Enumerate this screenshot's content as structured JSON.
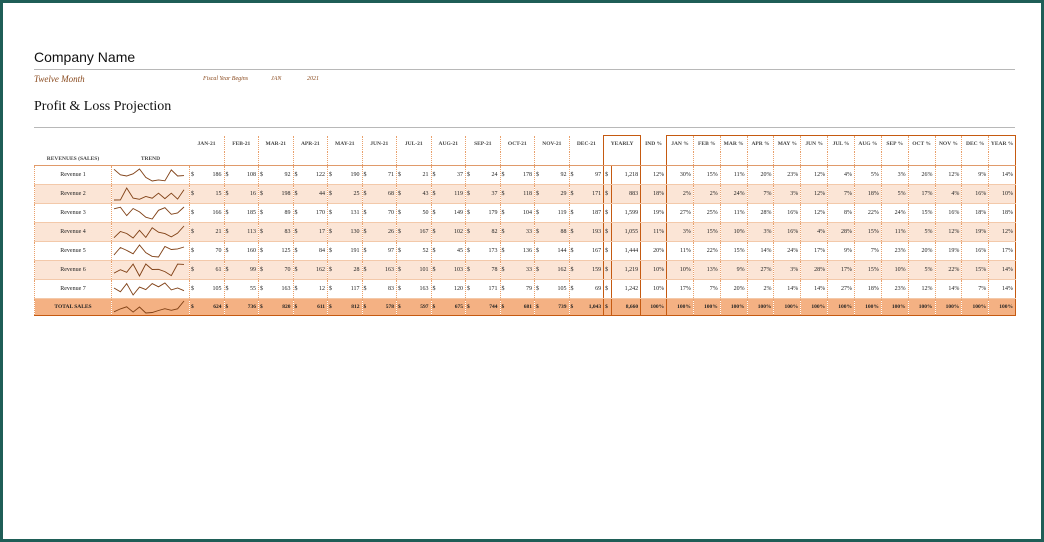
{
  "company_name": "Company Name",
  "subtitle": "Twelve Month",
  "fiscal": {
    "label": "Fiscal Year Begins",
    "month": "JAN",
    "year": "2021"
  },
  "report_title": "Profit & Loss Projection",
  "table": {
    "revenues_header": "REVENUES (SALES)",
    "trend_header": "TREND",
    "months": [
      "JAN-21",
      "FEB-21",
      "MAR-21",
      "APR-21",
      "MAY-21",
      "JUN-21",
      "JUL-21",
      "AUG-21",
      "SEP-21",
      "OCT-21",
      "NOV-21",
      "DEC-21"
    ],
    "yearly_header": "YEARLY",
    "ind_header": "IND %",
    "pct_headers": [
      "JAN %",
      "FEB %",
      "MAR %",
      "APR %",
      "MAY %",
      "JUN %",
      "JUL %",
      "AUG %",
      "SEP %",
      "OCT %",
      "NOV %",
      "DEC %",
      "YEAR %"
    ],
    "currency": "$",
    "rows": [
      {
        "label": "Revenue 1",
        "values": [
          "186",
          "108",
          "92",
          "122",
          "190",
          "71",
          "21",
          "37",
          "24",
          "178",
          "92",
          "97"
        ],
        "yearly": "1,218",
        "ind": "12%",
        "pcts": [
          "30%",
          "15%",
          "11%",
          "20%",
          "23%",
          "12%",
          "4%",
          "5%",
          "3%",
          "26%",
          "12%",
          "9%",
          "14%"
        ]
      },
      {
        "label": "Revenue 2",
        "values": [
          "15",
          "16",
          "198",
          "44",
          "25",
          "68",
          "43",
          "119",
          "37",
          "118",
          "29",
          "171"
        ],
        "yearly": "883",
        "ind": "18%",
        "pcts": [
          "2%",
          "2%",
          "24%",
          "7%",
          "3%",
          "12%",
          "7%",
          "18%",
          "5%",
          "17%",
          "4%",
          "16%",
          "10%"
        ]
      },
      {
        "label": "Revenue 3",
        "values": [
          "166",
          "185",
          "89",
          "170",
          "131",
          "70",
          "50",
          "149",
          "179",
          "104",
          "119",
          "187"
        ],
        "yearly": "1,599",
        "ind": "19%",
        "pcts": [
          "27%",
          "25%",
          "11%",
          "28%",
          "16%",
          "12%",
          "8%",
          "22%",
          "24%",
          "15%",
          "16%",
          "18%",
          "18%"
        ]
      },
      {
        "label": "Revenue 4",
        "values": [
          "21",
          "113",
          "83",
          "17",
          "130",
          "26",
          "167",
          "102",
          "82",
          "33",
          "88",
          "193"
        ],
        "yearly": "1,055",
        "ind": "11%",
        "pcts": [
          "3%",
          "15%",
          "10%",
          "3%",
          "16%",
          "4%",
          "28%",
          "15%",
          "11%",
          "5%",
          "12%",
          "19%",
          "12%"
        ]
      },
      {
        "label": "Revenue 5",
        "values": [
          "70",
          "160",
          "125",
          "84",
          "191",
          "97",
          "52",
          "45",
          "173",
          "136",
          "144",
          "167"
        ],
        "yearly": "1,444",
        "ind": "20%",
        "pcts": [
          "11%",
          "22%",
          "15%",
          "14%",
          "24%",
          "17%",
          "9%",
          "7%",
          "23%",
          "20%",
          "19%",
          "16%",
          "17%"
        ]
      },
      {
        "label": "Revenue 6",
        "values": [
          "61",
          "99",
          "70",
          "162",
          "28",
          "163",
          "101",
          "103",
          "78",
          "33",
          "162",
          "159"
        ],
        "yearly": "1,219",
        "ind": "10%",
        "pcts": [
          "10%",
          "13%",
          "9%",
          "27%",
          "3%",
          "28%",
          "17%",
          "15%",
          "10%",
          "5%",
          "22%",
          "15%",
          "14%"
        ]
      },
      {
        "label": "Revenue 7",
        "values": [
          "105",
          "55",
          "163",
          "12",
          "117",
          "83",
          "163",
          "120",
          "171",
          "79",
          "105",
          "69"
        ],
        "yearly": "1,242",
        "ind": "10%",
        "pcts": [
          "17%",
          "7%",
          "20%",
          "2%",
          "14%",
          "14%",
          "27%",
          "18%",
          "23%",
          "12%",
          "14%",
          "7%",
          "14%"
        ]
      }
    ],
    "total": {
      "label": "TOTAL SALES",
      "values": [
        "624",
        "736",
        "820",
        "611",
        "812",
        "578",
        "597",
        "675",
        "744",
        "681",
        "739",
        "1,043"
      ],
      "yearly": "8,660",
      "ind": "100%",
      "pcts": [
        "100%",
        "100%",
        "100%",
        "100%",
        "100%",
        "100%",
        "100%",
        "100%",
        "100%",
        "100%",
        "100%",
        "100%",
        "100%"
      ]
    }
  },
  "colors": {
    "accent": "#c55a11",
    "shade": "#fbe5d6",
    "total_fill": "#f4b183",
    "frame": "#1f5e57"
  }
}
